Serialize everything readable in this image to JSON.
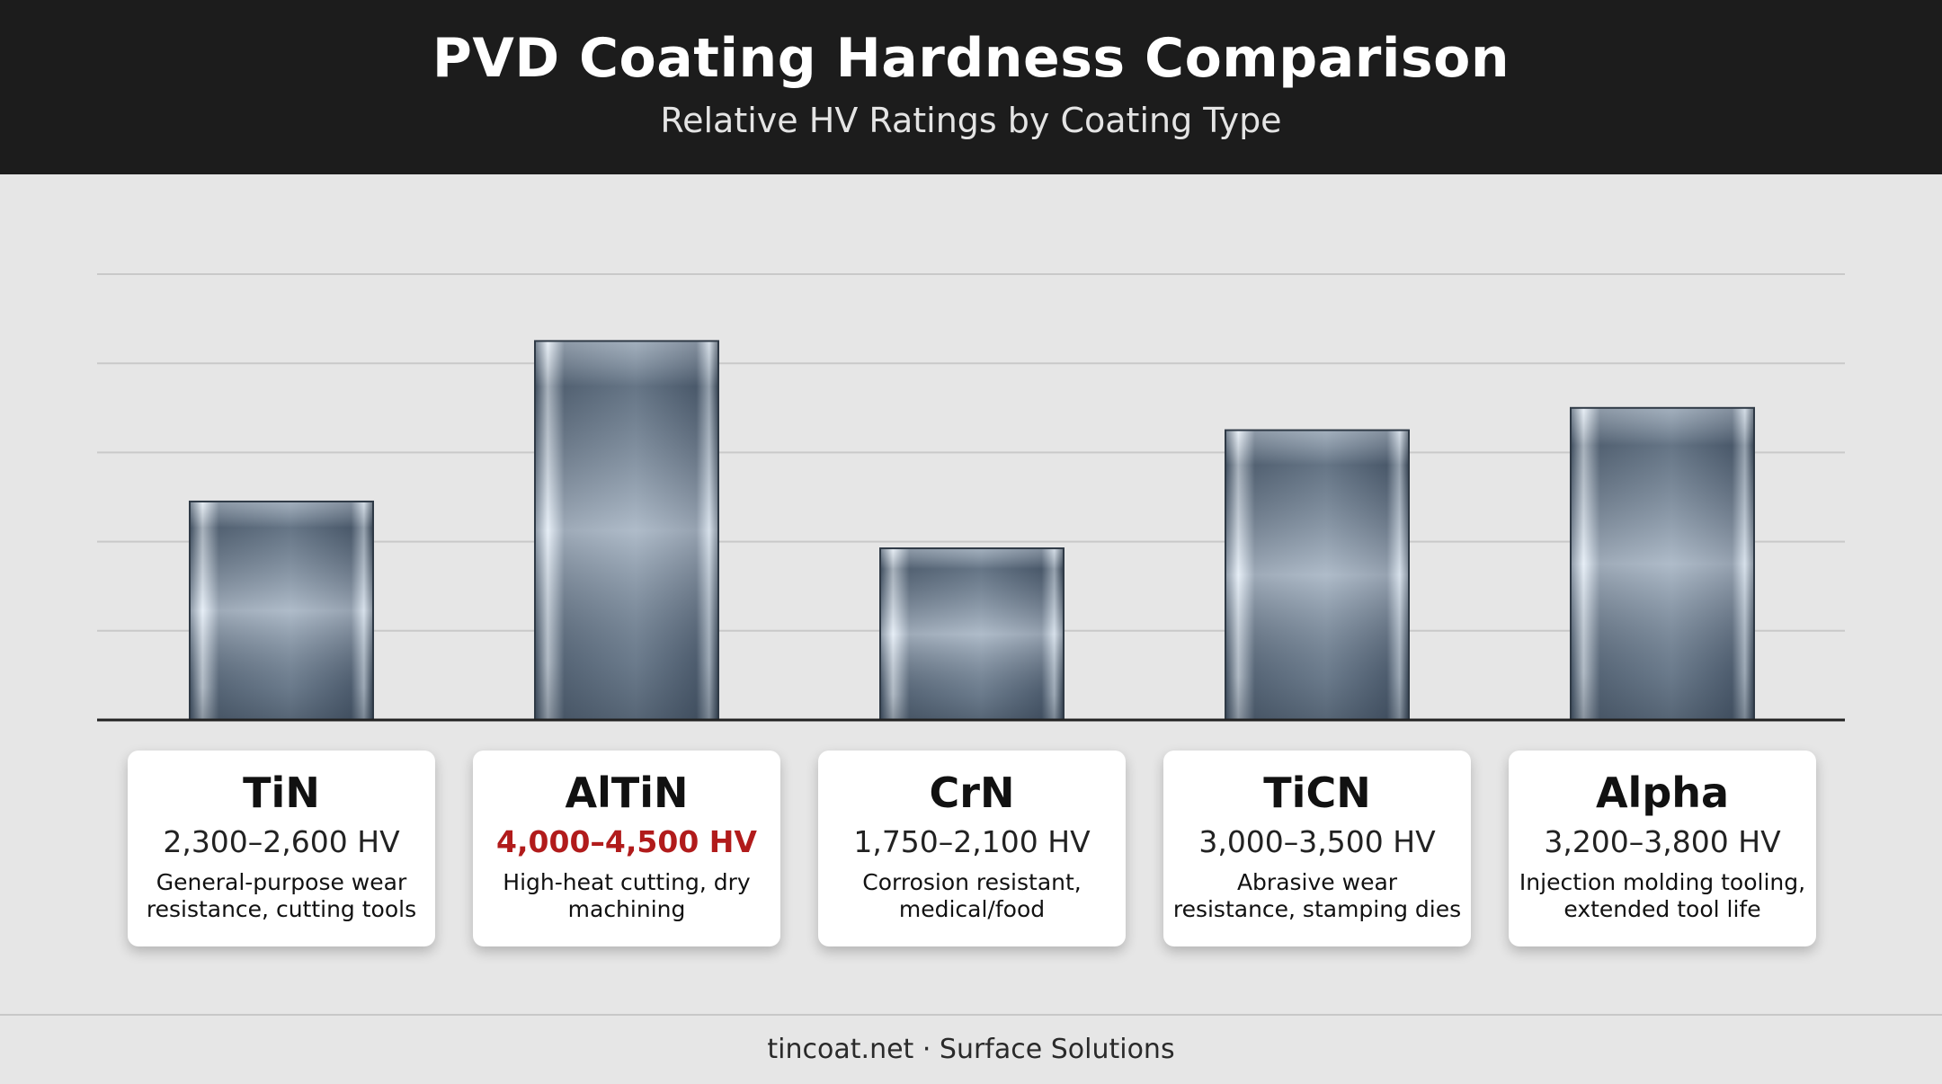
{
  "header": {
    "title": "PVD Coating Hardness Comparison",
    "subtitle": "Relative HV Ratings by Coating Type"
  },
  "chart_data": {
    "type": "bar",
    "title": "PVD Coating Hardness Comparison",
    "subtitle": "Relative HV Ratings by Coating Type",
    "categories": [
      "TiN",
      "AlTiN",
      "CrN",
      "TiCN",
      "Alpha"
    ],
    "values": [
      2450,
      4250,
      1925,
      3250,
      3500
    ],
    "ranges": [
      "2,300–2,600 HV",
      "4,000–4,500 HV",
      "1,750–2,100 HV",
      "3,000–3,500 HV",
      "3,200–3,800 HV"
    ],
    "descriptions": [
      "General-purpose wear resistance, cutting tools",
      "High-heat cutting, dry machining",
      "Corrosion resistant, medical/food",
      "Abrasive wear resistance, stamping dies",
      "Injection molding tooling, extended tool life"
    ],
    "highlight": "AlTiN",
    "highlight_color": "#b11b1b",
    "ylim": [
      0,
      5000
    ],
    "grid": true,
    "xlabel": "",
    "ylabel": ""
  },
  "footer": {
    "text": "tincoat.net · Surface Solutions"
  }
}
